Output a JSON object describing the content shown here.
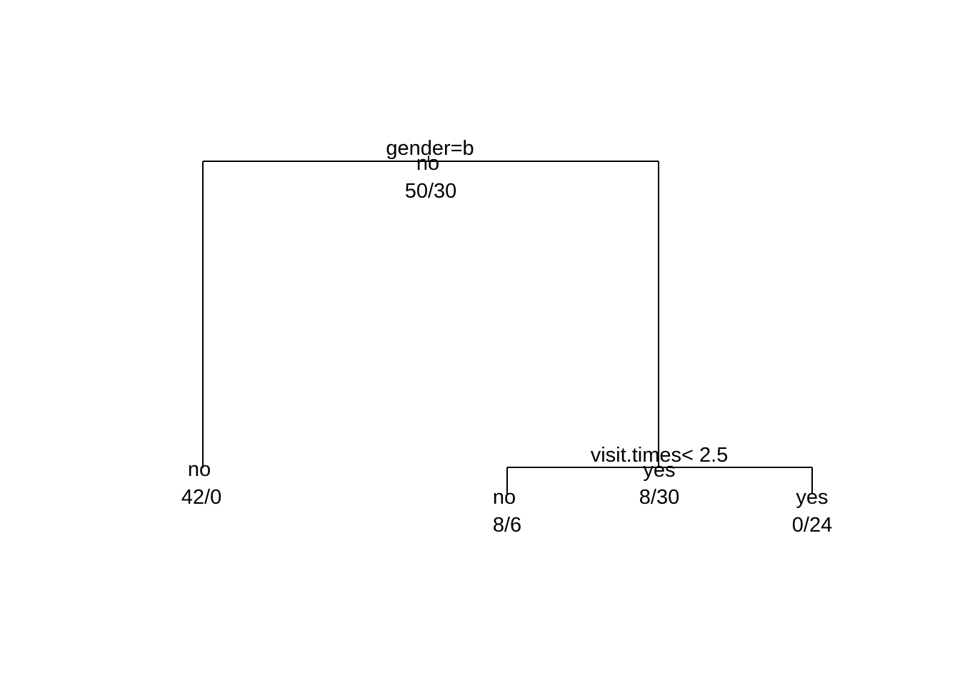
{
  "tree": {
    "type": "decision-tree",
    "line_color": "#000000",
    "root": {
      "split": "gender=b",
      "class": "no",
      "counts": "50/30",
      "left": {
        "class": "no",
        "counts": "42/0"
      },
      "right": {
        "split": "visit.times< 2.5",
        "class": "yes",
        "counts": "8/30",
        "left": {
          "class": "no",
          "counts": "8/6"
        },
        "right": {
          "class": "yes",
          "counts": "0/24"
        }
      }
    }
  }
}
